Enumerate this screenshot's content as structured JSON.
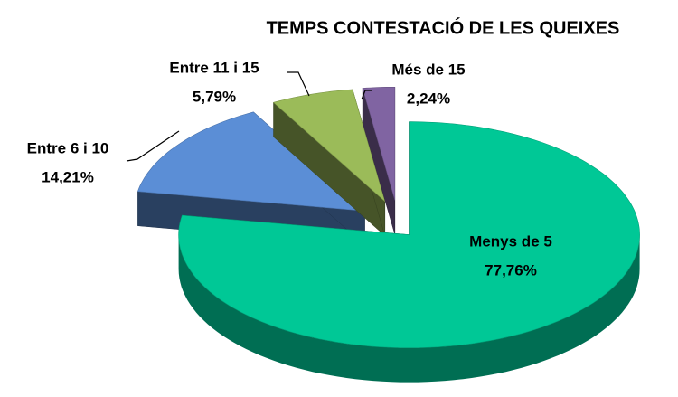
{
  "chart_data": {
    "type": "pie",
    "title": "TEMPS CONTESTACIÓ DE LES QUEIXES",
    "categories": [
      "Menys de 5",
      "Entre 6 i 10",
      "Entre 11 i 15",
      "Més de 15"
    ],
    "values": [
      77.76,
      14.21,
      5.79,
      2.24
    ],
    "value_labels": [
      "77,76%",
      "14,21%",
      "5,79%",
      "2,24%"
    ],
    "colors": [
      "#00c896",
      "#5b8ed6",
      "#9bbb59",
      "#8064a2"
    ]
  }
}
